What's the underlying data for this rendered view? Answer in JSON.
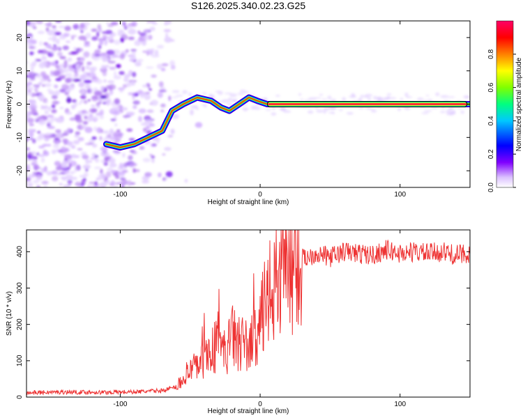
{
  "title": "S126.2025.340.02.23.G25",
  "chart_data": [
    {
      "type": "heatmap",
      "xlabel": "Height of straight line (km)",
      "ylabel": "Frequency (Hz)",
      "xlim": [
        -167,
        150
      ],
      "ylim": [
        -25,
        25
      ],
      "x_ticks": [
        -100,
        0,
        100
      ],
      "y_ticks": [
        -20,
        -10,
        0,
        10,
        20
      ],
      "x_tick_labels": [
        "-100",
        "0",
        "100"
      ],
      "y_tick_labels": [
        "-20",
        "-10",
        "0",
        "10",
        "20"
      ],
      "colorbar": {
        "label": "Normalized spectral amplitude",
        "range": [
          0,
          1
        ],
        "ticks": [
          0.0,
          0.2,
          0.4,
          0.6,
          0.8
        ],
        "tick_labels": [
          "0.0",
          "0.2",
          "0.4",
          "0.6",
          "0.8"
        ],
        "colors": [
          "#ffffff",
          "#d8b8ff",
          "#8000ff",
          "#0000ff",
          "#00c8ff",
          "#00ff80",
          "#80ff00",
          "#ffff00",
          "#ff8000",
          "#ff0000",
          "#ff0066"
        ]
      },
      "doppler_ridge": {
        "x": [
          -110,
          -100,
          -90,
          -80,
          -70,
          -63,
          -55,
          -45,
          -35,
          -28,
          -22,
          -15,
          -8,
          -2,
          5,
          150
        ],
        "y": [
          -12,
          -13,
          -12,
          -10,
          -8,
          -2,
          0,
          2,
          1,
          -1,
          -2,
          0,
          2,
          1,
          0,
          0
        ]
      }
    },
    {
      "type": "line",
      "xlabel": "Height of straight line (km)",
      "ylabel": "SNR (10 * v/v)",
      "xlim": [
        -167,
        150
      ],
      "ylim": [
        0,
        460
      ],
      "x_ticks": [
        -100,
        0,
        100
      ],
      "y_ticks": [
        0,
        100,
        200,
        300,
        400
      ],
      "x_tick_labels": [
        "-100",
        "0",
        "100"
      ],
      "y_tick_labels": [
        "0",
        "100",
        "200",
        "300",
        "400"
      ],
      "series": [
        {
          "name": "SNR",
          "color": "#ee3333",
          "x": [
            -167,
            -140,
            -110,
            -85,
            -70,
            -60,
            -55,
            -50,
            -45,
            -40,
            -35,
            -30,
            -25,
            -20,
            -15,
            -10,
            -5,
            0,
            5,
            10,
            15,
            20,
            25,
            30,
            40,
            50,
            60,
            70,
            80,
            90,
            100,
            110,
            120,
            130,
            140,
            150
          ],
          "y": [
            12,
            14,
            13,
            15,
            18,
            28,
            55,
            70,
            85,
            110,
            125,
            150,
            120,
            165,
            155,
            140,
            150,
            210,
            260,
            310,
            345,
            370,
            385,
            380,
            395,
            385,
            400,
            395,
            390,
            405,
            395,
            400,
            395,
            400,
            390,
            398
          ]
        }
      ]
    }
  ]
}
